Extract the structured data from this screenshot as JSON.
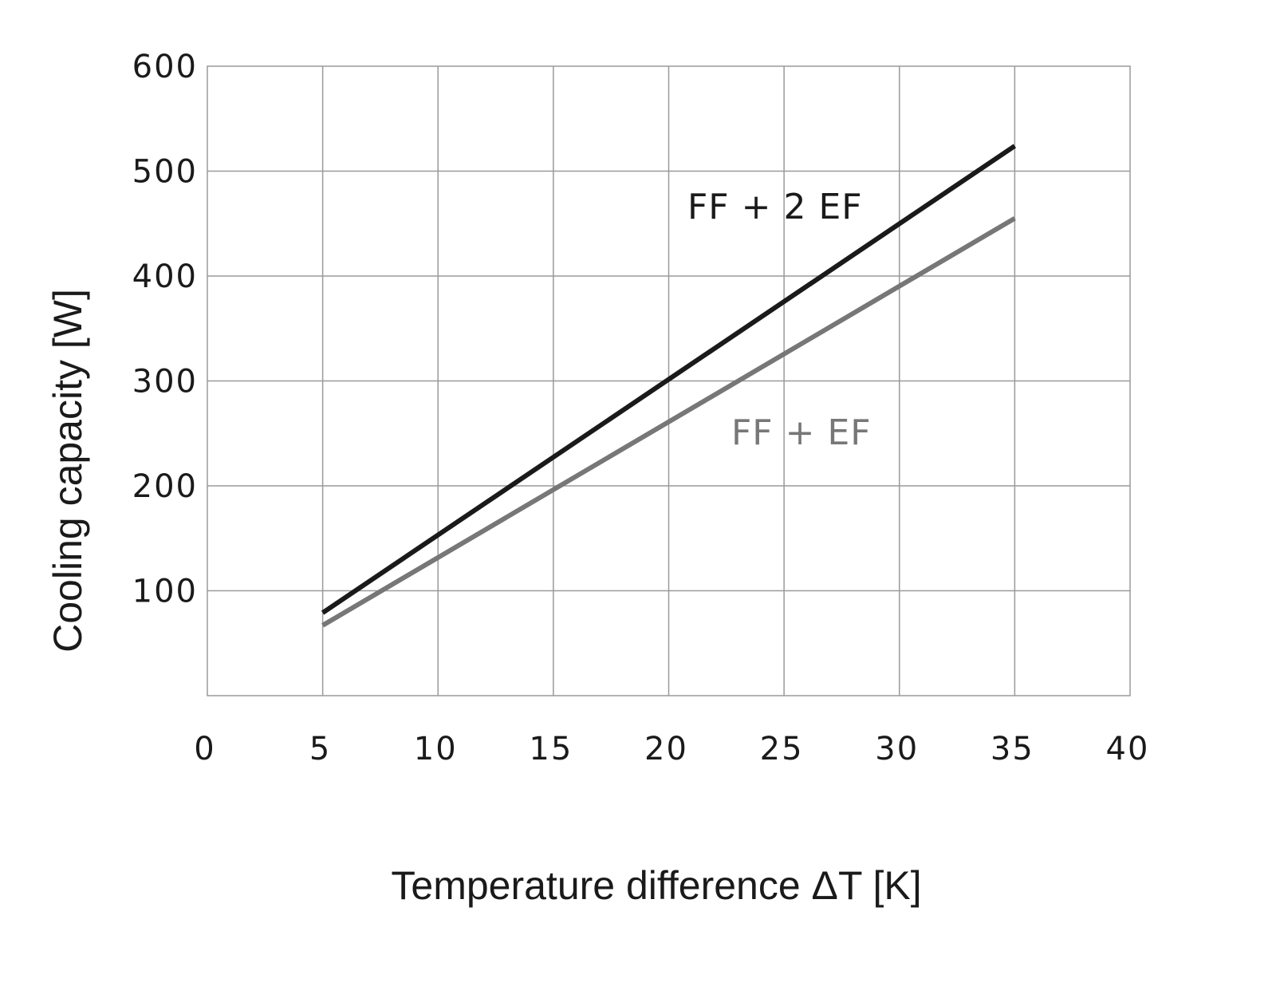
{
  "chart_data": {
    "type": "line",
    "title": "",
    "xlabel": "Temperature difference ΔT [K]",
    "ylabel": "Cooling capacity  [W]",
    "xlim": [
      0,
      40
    ],
    "ylim": [
      0,
      600
    ],
    "x_ticks": [
      "0",
      "5",
      "10",
      "15",
      "20",
      "25",
      "30",
      "35",
      "40"
    ],
    "y_ticks": [
      "100",
      "200",
      "300",
      "400",
      "500",
      "600"
    ],
    "grid": true,
    "series": [
      {
        "name": "FF + 2 EF",
        "x": [
          5,
          35
        ],
        "y": [
          79,
          524
        ],
        "color": "#1a1a1a"
      },
      {
        "name": "FF + EF",
        "x": [
          5,
          35
        ],
        "y": [
          67,
          455
        ],
        "color": "#777777"
      }
    ]
  }
}
